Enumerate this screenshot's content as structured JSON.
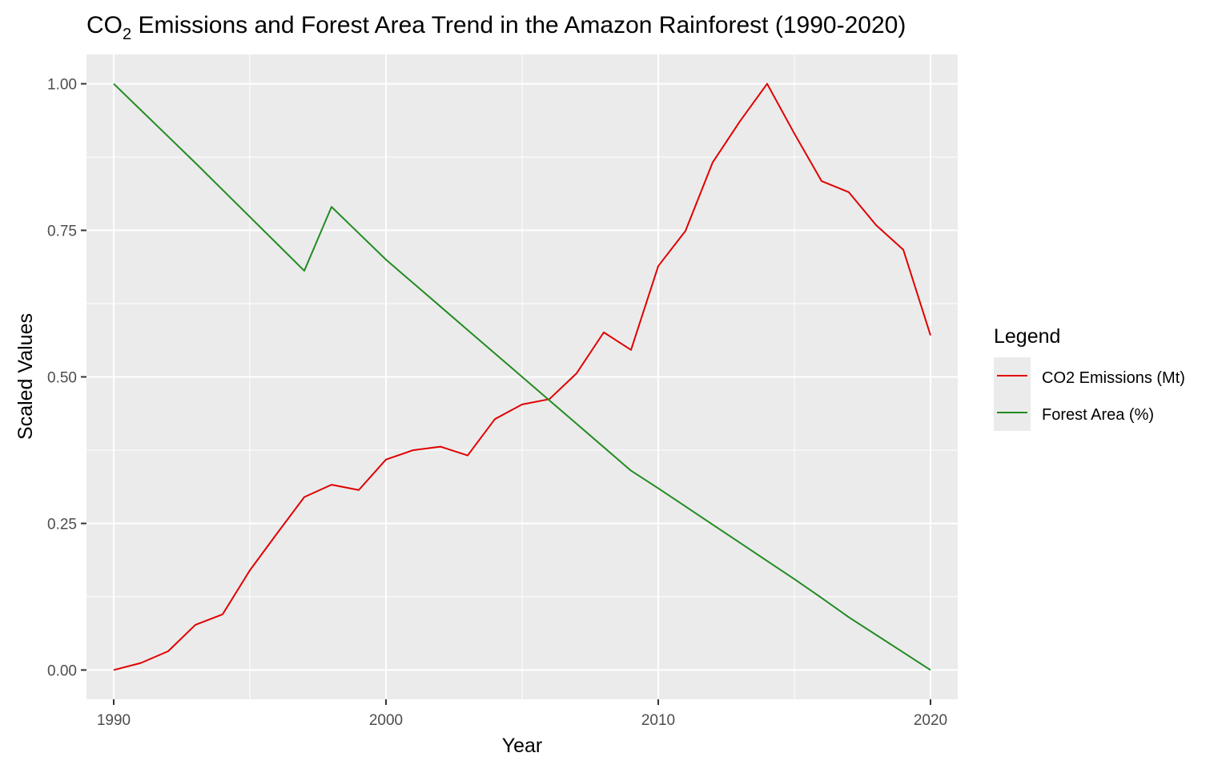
{
  "chart_data": {
    "type": "line",
    "title_main": "CO",
    "title_sub": "2",
    "title_rest": " Emissions and Forest Area Trend in the Amazon Rainforest (1990-2020)",
    "xlabel": "Year",
    "ylabel": "Scaled Values",
    "xlim": [
      1989,
      2021
    ],
    "ylim": [
      -0.05,
      1.05
    ],
    "x_ticks": [
      1990,
      2000,
      2010,
      2020
    ],
    "x_tick_labels": [
      "1990",
      "2000",
      "2010",
      "2020"
    ],
    "y_ticks": [
      0,
      0.25,
      0.5,
      0.75,
      1
    ],
    "y_tick_labels": [
      "0.00",
      "0.25",
      "0.50",
      "0.75",
      "1.00"
    ],
    "grid": true,
    "legend_position": "right",
    "legend_title": "Legend",
    "x": [
      1990,
      1991,
      1992,
      1993,
      1994,
      1995,
      1996,
      1997,
      1998,
      1999,
      2000,
      2001,
      2002,
      2003,
      2004,
      2005,
      2006,
      2007,
      2008,
      2009,
      2010,
      2011,
      2012,
      2013,
      2014,
      2015,
      2016,
      2017,
      2018,
      2019,
      2020
    ],
    "series": [
      {
        "name": "CO2 Emissions (Mt)",
        "color": "#e00000",
        "values": [
          0.0,
          0.012,
          0.032,
          0.077,
          0.095,
          0.17,
          0.233,
          0.295,
          0.316,
          0.307,
          0.359,
          0.375,
          0.381,
          0.366,
          0.428,
          0.453,
          0.462,
          0.506,
          0.576,
          0.546,
          0.689,
          0.749,
          0.866,
          0.936,
          1.0,
          0.915,
          0.834,
          0.815,
          0.759,
          0.717,
          0.571
        ]
      },
      {
        "name": "Forest Area (%)",
        "color": "#228b22",
        "values": [
          1.0,
          0.955,
          0.91,
          0.865,
          0.819,
          0.773,
          0.727,
          0.681,
          0.79,
          0.745,
          0.7,
          0.66,
          0.62,
          0.58,
          0.54,
          0.5,
          0.46,
          0.42,
          0.38,
          0.34,
          0.31,
          0.279,
          0.248,
          0.217,
          0.186,
          0.155,
          0.123,
          0.09,
          0.06,
          0.03,
          0.0
        ]
      }
    ]
  },
  "colors": {
    "panel_background": "#ebebeb",
    "grid_major": "#ffffff",
    "axis_text": "#4d4d4d",
    "title_text": "#000000"
  }
}
